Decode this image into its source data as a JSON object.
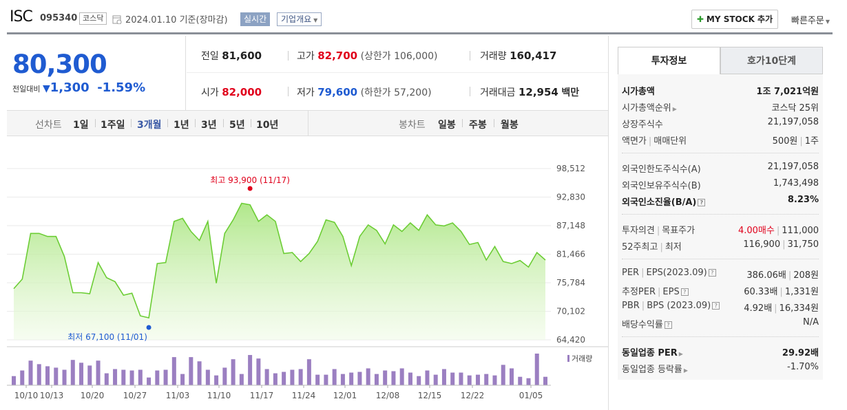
{
  "header": {
    "name": "ISC",
    "code": "095340",
    "market": "코스닥",
    "date": "2024.01.10",
    "basis": "기준(장마감)",
    "realtime": "실시간",
    "overview": "기업개요",
    "mystock": "MY STOCK 추가",
    "quick_order": "빠른주문"
  },
  "price": {
    "current": "80,300",
    "change_label": "전일대비",
    "change": "1,300",
    "change_pct": "-1.59%"
  },
  "quote": {
    "prev_label": "전일",
    "prev": "81,600",
    "high_label": "고가",
    "high": "82,700",
    "upper_limit": "(상한가 106,000)",
    "volume_label": "거래량",
    "volume": "160,417",
    "open_label": "시가",
    "open": "82,000",
    "low_label": "저가",
    "low": "79,600",
    "lower_limit": "(하한가 57,200)",
    "amount_label": "거래대금",
    "amount": "12,954",
    "amount_unit": "백만"
  },
  "toolbar": {
    "line_label": "선차트",
    "line_periods": [
      "1일",
      "1주일",
      "3개월",
      "1년",
      "3년",
      "5년",
      "10년"
    ],
    "active_period": "3개월",
    "candle_label": "봉차트",
    "candle_periods": [
      "일봉",
      "주봉",
      "월봉"
    ]
  },
  "tabs": [
    "투자정보",
    "호가10단계"
  ],
  "info": {
    "market_cap_label": "시가총액",
    "market_cap": "1조 7,021억원",
    "cap_rank_label": "시가총액순위",
    "cap_rank": "코스닥 25위",
    "shares_label": "상장주식수",
    "shares": "21,197,058",
    "par_label": "액면가",
    "trade_unit_label": "매매단위",
    "par": "500원",
    "trade_unit": "1주",
    "foreign_limit_label": "외국인한도주식수(A)",
    "foreign_limit": "21,197,058",
    "foreign_hold_label": "외국인보유주식수(B)",
    "foreign_hold": "1,743,498",
    "foreign_ratio_label": "외국인소진율(B/A)",
    "foreign_ratio": "8.23%",
    "opinion_label": "투자의견",
    "target_label": "목표주가",
    "opinion": "4.00매수",
    "target": "111,000",
    "week52_label": "52주최고",
    "week52_low_label": "최저",
    "week52_high": "116,900",
    "week52_low": "31,750",
    "per_label": "PER",
    "eps_label": "EPS(2023.09)",
    "per": "386.06배",
    "eps": "208원",
    "fper_label": "추정PER",
    "feps_label": "EPS",
    "fper": "60.33배",
    "feps": "1,331원",
    "pbr_label": "PBR",
    "bps_label": "BPS (2023.09)",
    "pbr": "4.92배",
    "bps": "16,334원",
    "dividend_label": "배당수익률",
    "dividend": "N/A",
    "sector_per_label": "동일업종 PER",
    "sector_per": "29.92배",
    "sector_chg_label": "동일업종 등락률",
    "sector_chg": "-1.70%"
  },
  "chart_data": {
    "type": "area",
    "y_ticks": [
      "98,512",
      "92,830",
      "87,148",
      "81,466",
      "75,784",
      "70,102",
      "64,420"
    ],
    "ylim": [
      64420,
      98512
    ],
    "x_ticks": [
      "10/10",
      "10/13",
      "10/20",
      "10/27",
      "11/03",
      "11/10",
      "11/17",
      "11/24",
      "12/01",
      "12/08",
      "12/15",
      "12/22",
      "01/05"
    ],
    "high_label": "최고 93,900 (11/17)",
    "low_label": "최저 67,100 (11/01)",
    "volume_label": "거래량",
    "prices": [
      74600,
      76500,
      85600,
      85600,
      85000,
      85000,
      81000,
      73800,
      73800,
      73600,
      79800,
      76800,
      76000,
      73300,
      73700,
      69200,
      68800,
      79600,
      79800,
      88000,
      88600,
      86000,
      84200,
      88000,
      75700,
      85600,
      88300,
      91600,
      91300,
      88000,
      89300,
      88000,
      81600,
      81800,
      80000,
      81600,
      84000,
      88300,
      87800,
      85000,
      79200,
      85000,
      87300,
      86200,
      83500,
      87300,
      86000,
      87700,
      86200,
      89300,
      87300,
      87100,
      87700,
      86000,
      83400,
      83800,
      80300,
      83000,
      80000,
      79600,
      80200,
      78900,
      81800,
      80300
    ],
    "volumes": [
      13,
      21,
      35,
      30,
      27,
      25,
      22,
      36,
      32,
      28,
      35,
      17,
      23,
      22,
      21,
      22,
      11,
      21,
      22,
      40,
      16,
      40,
      34,
      22,
      14,
      25,
      37,
      16,
      43,
      38,
      23,
      17,
      19,
      22,
      23,
      37,
      15,
      15,
      23,
      16,
      18,
      19,
      24,
      16,
      21,
      20,
      24,
      18,
      13,
      21,
      15,
      23,
      18,
      18,
      14,
      15,
      16,
      14,
      29,
      24,
      12,
      10,
      45,
      12
    ]
  }
}
